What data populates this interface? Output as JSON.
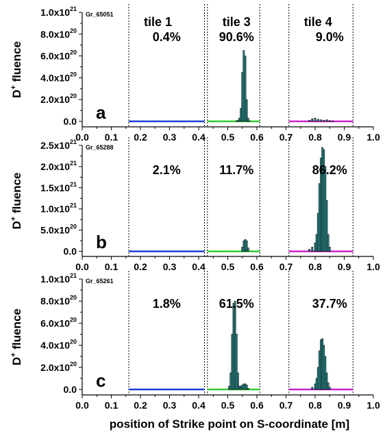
{
  "x_axis_label": "position of Strike point on S-coordinate [m]",
  "tile_labels": [
    "tile 1",
    "tile 3",
    "tile 4"
  ],
  "y_axis_label_main": "D",
  "y_axis_label_sup": "+",
  "y_axis_label_rest": " fluence",
  "colors": {
    "tile1_baseline": "#1f3fd6",
    "tile3_baseline": "#33cc33",
    "tile4_baseline": "#cc22cc",
    "bar_fill": "#2e8b8b",
    "bar_stroke": "#000000"
  },
  "chart_data": [
    {
      "type": "bar",
      "panel_label": "a",
      "shot": "Gr_65051",
      "percentages": [
        "0.4%",
        "90.6%",
        "9.0%"
      ],
      "xlim": [
        0.0,
        1.0
      ],
      "ylim": [
        -5e+19,
        1e+21
      ],
      "x_ticks": [
        "0.0",
        "0.1",
        "0.2",
        "0.3",
        "0.4",
        "0.5",
        "0.6",
        "0.7",
        "0.8",
        "0.9",
        "1.0"
      ],
      "y_ticks": [
        {
          "value": 0,
          "mant": "0.0",
          "exp": ""
        },
        {
          "value": 2e+20,
          "mant": "2.0x10",
          "exp": "20"
        },
        {
          "value": 4e+20,
          "mant": "4.0x10",
          "exp": "20"
        },
        {
          "value": 6e+20,
          "mant": "6.0x10",
          "exp": "20"
        },
        {
          "value": 8e+20,
          "mant": "8.0x10",
          "exp": "20"
        },
        {
          "value": 1e+21,
          "mant": "1.0x10",
          "exp": "21"
        }
      ],
      "tile_bounds": [
        0.16,
        0.42,
        0.43,
        0.61,
        0.71,
        0.93
      ],
      "bars": {
        "x": [
          0.53,
          0.535,
          0.54,
          0.545,
          0.55,
          0.555,
          0.56,
          0.565,
          0.57,
          0.575,
          0.78,
          0.79,
          0.8,
          0.81,
          0.82,
          0.83,
          0.84,
          0.85,
          0.86
        ],
        "y": [
          5e+18,
          1e+19,
          3e+19,
          1.2e+20,
          4.5e+20,
          6.5e+20,
          6e+20,
          2e+20,
          3e+19,
          5e+18,
          1e+19,
          2.5e+19,
          3e+19,
          2e+19,
          1.5e+19,
          1e+19,
          1.5e+19,
          8e+18,
          5e+18
        ]
      }
    },
    {
      "type": "bar",
      "panel_label": "b",
      "shot": "Gr_65288",
      "percentages": [
        "2.1%",
        "11.7%",
        "86.2%"
      ],
      "xlim": [
        0.0,
        1.0
      ],
      "ylim": [
        -1.2e+20,
        2.5e+21
      ],
      "x_ticks": [
        "0.0",
        "0.1",
        "0.2",
        "0.3",
        "0.4",
        "0.5",
        "0.6",
        "0.7",
        "0.8",
        "0.9",
        "1.0"
      ],
      "y_ticks": [
        {
          "value": 0,
          "mant": "0.0",
          "exp": ""
        },
        {
          "value": 5e+20,
          "mant": "5.0x10",
          "exp": "20"
        },
        {
          "value": 1e+21,
          "mant": "1.0x10",
          "exp": "21"
        },
        {
          "value": 1.5e+21,
          "mant": "1.5x10",
          "exp": "21"
        },
        {
          "value": 2e+21,
          "mant": "2.0x10",
          "exp": "21"
        },
        {
          "value": 2.5e+21,
          "mant": "2.5x10",
          "exp": "21"
        }
      ],
      "tile_bounds": [
        0.16,
        0.42,
        0.43,
        0.61,
        0.71,
        0.93
      ],
      "bars": {
        "x": [
          0.55,
          0.555,
          0.56,
          0.565,
          0.57,
          0.78,
          0.79,
          0.8,
          0.805,
          0.81,
          0.815,
          0.82,
          0.825,
          0.83,
          0.835,
          0.84,
          0.845,
          0.85
        ],
        "y": [
          1e+20,
          2.5e+20,
          2.8e+20,
          2.5e+20,
          8e+19,
          5e+19,
          1e+20,
          2e+20,
          4e+20,
          9e+20,
          1.6e+21,
          2.2e+21,
          2.45e+21,
          2.4e+21,
          2e+21,
          1.2e+21,
          4e+20,
          1e+20
        ]
      }
    },
    {
      "type": "bar",
      "panel_label": "c",
      "shot": "Gr_65261",
      "percentages": [
        "1.8%",
        "61.5%",
        "37.7%"
      ],
      "xlim": [
        0.0,
        1.0
      ],
      "ylim": [
        -5e+19,
        1e+21
      ],
      "x_ticks": [
        "0.0",
        "0.1",
        "0.2",
        "0.3",
        "0.4",
        "0.5",
        "0.6",
        "0.7",
        "0.8",
        "0.9",
        "1.0"
      ],
      "y_ticks": [
        {
          "value": 0,
          "mant": "0.0",
          "exp": ""
        },
        {
          "value": 2e+20,
          "mant": "2.0x10",
          "exp": "20"
        },
        {
          "value": 4e+20,
          "mant": "4.0x10",
          "exp": "20"
        },
        {
          "value": 6e+20,
          "mant": "6.0x10",
          "exp": "20"
        },
        {
          "value": 8e+20,
          "mant": "8.0x10",
          "exp": "20"
        },
        {
          "value": 1e+21,
          "mant": "1.0x10",
          "exp": "21"
        }
      ],
      "tile_bounds": [
        0.16,
        0.42,
        0.43,
        0.61,
        0.71,
        0.93
      ],
      "bars": {
        "x": [
          0.505,
          0.51,
          0.515,
          0.52,
          0.525,
          0.53,
          0.535,
          0.54,
          0.545,
          0.55,
          0.555,
          0.56,
          0.565,
          0.57,
          0.79,
          0.8,
          0.805,
          0.81,
          0.815,
          0.82,
          0.825,
          0.83,
          0.835,
          0.84,
          0.845,
          0.85
        ],
        "y": [
          3e+19,
          1.5e+20,
          5e+20,
          7.8e+20,
          8e+20,
          5e+20,
          1.5e+20,
          3e+19,
          3e+19,
          4e+19,
          5e+19,
          5e+19,
          4e+19,
          1e+19,
          2e+19,
          5e+19,
          1e+20,
          2e+20,
          3.5e+20,
          4.5e+20,
          4.6e+20,
          4e+20,
          3e+20,
          1.5e+20,
          6e+19,
          2e+19
        ]
      }
    }
  ]
}
